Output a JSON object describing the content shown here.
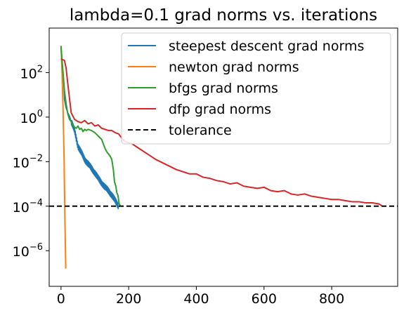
{
  "chart_data": {
    "type": "line",
    "title": "lambda=0.1 grad norms vs. iterations",
    "xlabel": "",
    "ylabel": "",
    "y_scale": "log",
    "xlim": [
      -35,
      995
    ],
    "ylim_exponent": [
      -7.6,
      4.0
    ],
    "x_ticks": [
      0,
      200,
      400,
      600,
      800
    ],
    "x_tick_labels": [
      "0",
      "200",
      "400",
      "600",
      "800"
    ],
    "y_ticks": [
      2,
      0,
      -2,
      -4,
      -6
    ],
    "y_tick_labels": [
      {
        "base": "10",
        "exp": "2"
      },
      {
        "base": "10",
        "exp": "0"
      },
      {
        "base": "10",
        "exp": "−2"
      },
      {
        "base": "10",
        "exp": "−4"
      },
      {
        "base": "10",
        "exp": "−6"
      }
    ],
    "legend_position": "top-right",
    "series": [
      {
        "name": "steepest descent grad norms",
        "color": "#1f77b4",
        "style": "solid",
        "noisy": true,
        "x": [
          0,
          5,
          8,
          10,
          15,
          20,
          25,
          30,
          40,
          50,
          60,
          70,
          80,
          90,
          100,
          110,
          120,
          130,
          140,
          150,
          160,
          170
        ],
        "log10_y": [
          3.2,
          2.2,
          1.5,
          0.8,
          0.4,
          0.2,
          0.05,
          -0.2,
          -0.6,
          -1.3,
          -1.6,
          -1.9,
          -2.1,
          -2.3,
          -2.5,
          -2.75,
          -2.95,
          -3.15,
          -3.3,
          -3.5,
          -3.75,
          -4.0
        ]
      },
      {
        "name": "newton grad norms",
        "color": "#ff7f0e",
        "style": "solid",
        "noisy": false,
        "x": [
          0,
          3,
          6,
          9,
          12,
          14
        ],
        "log10_y": [
          3.2,
          2.0,
          0.4,
          -1.8,
          -5.0,
          -6.8
        ]
      },
      {
        "name": "bfgs grad norms",
        "color": "#2ca02c",
        "style": "solid",
        "noisy": false,
        "x": [
          0,
          3,
          6,
          10,
          15,
          20,
          25,
          30,
          35,
          40,
          45,
          50,
          55,
          60,
          65,
          70,
          75,
          80,
          90,
          100,
          110,
          120,
          125,
          130,
          135,
          140,
          145,
          150,
          155,
          158,
          162,
          165,
          168,
          172,
          176
        ],
        "log10_y": [
          3.2,
          2.5,
          2.0,
          1.2,
          0.6,
          0.15,
          -0.1,
          -0.2,
          -0.35,
          -0.45,
          -0.5,
          -0.4,
          -0.55,
          -0.5,
          -0.65,
          -0.55,
          -0.6,
          -0.55,
          -0.6,
          -0.7,
          -0.85,
          -1.0,
          -1.2,
          -1.4,
          -1.55,
          -1.65,
          -1.75,
          -1.9,
          -2.4,
          -2.9,
          -3.1,
          -3.4,
          -3.5,
          -3.9,
          -4.0
        ]
      },
      {
        "name": "dfp grad norms",
        "color": "#d62728",
        "style": "solid",
        "noisy": false,
        "x": [
          0,
          2,
          10,
          15,
          20,
          30,
          40,
          50,
          60,
          70,
          80,
          90,
          100,
          110,
          120,
          130,
          140,
          150,
          160,
          170,
          180,
          190,
          200,
          210,
          220,
          240,
          260,
          280,
          300,
          320,
          340,
          360,
          380,
          400,
          420,
          440,
          460,
          480,
          500,
          520,
          540,
          560,
          580,
          600,
          620,
          640,
          660,
          680,
          700,
          720,
          740,
          760,
          780,
          800,
          820,
          840,
          860,
          880,
          900,
          920,
          940,
          950
        ],
        "log10_y": [
          2.6,
          2.6,
          2.55,
          2.2,
          1.5,
          0.2,
          -0.1,
          -0.2,
          -0.25,
          -0.15,
          -0.3,
          -0.25,
          -0.4,
          -0.35,
          -0.5,
          -0.55,
          -0.6,
          -0.6,
          -0.7,
          -0.75,
          -0.95,
          -1.1,
          -1.15,
          -1.2,
          -1.3,
          -1.5,
          -1.7,
          -1.9,
          -2.05,
          -2.2,
          -2.35,
          -2.45,
          -2.55,
          -2.55,
          -2.7,
          -2.75,
          -2.85,
          -2.9,
          -3.0,
          -2.95,
          -3.1,
          -3.15,
          -3.2,
          -3.15,
          -3.3,
          -3.35,
          -3.3,
          -3.45,
          -3.5,
          -3.45,
          -3.55,
          -3.6,
          -3.65,
          -3.7,
          -3.7,
          -3.75,
          -3.8,
          -3.8,
          -3.85,
          -3.85,
          -3.9,
          -4.0
        ]
      },
      {
        "name": "tolerance",
        "color": "#000000",
        "style": "dashed",
        "noisy": false,
        "x": [
          -35,
          995
        ],
        "log10_y": [
          -4,
          -4
        ]
      }
    ]
  }
}
